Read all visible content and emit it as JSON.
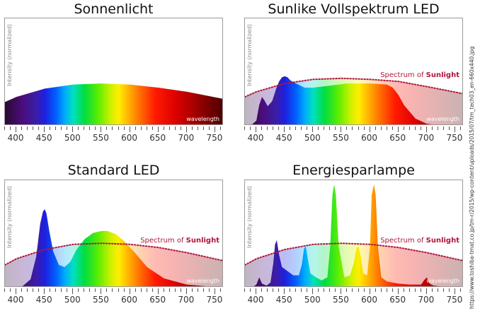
{
  "source_text": "https://www.toshiba-tmat.co.jp/tm-r/2015/wp-content/uploads/2015/07/tm_tech03_en-660x440.jpg",
  "chart_data": [
    {
      "type": "area",
      "title": "Sonnenlicht",
      "ylabel": "Intensity (normalized)",
      "wavelength_label": "wavelength",
      "xlim": [
        380,
        765
      ],
      "ylim": [
        0,
        1
      ],
      "x_ticks": [
        400,
        450,
        500,
        550,
        600,
        650,
        700,
        750
      ],
      "sun_label": null,
      "series": [
        {
          "x": [
            380,
            400,
            450,
            500,
            550,
            600,
            650,
            700,
            765
          ],
          "y": [
            0.23,
            0.28,
            0.36,
            0.4,
            0.41,
            0.4,
            0.37,
            0.33,
            0.26
          ]
        }
      ]
    },
    {
      "type": "area",
      "title": "Sunlike Vollspektrum LED",
      "ylabel": "Intensity (normalized)",
      "wavelength_label": "wavelength",
      "xlim": [
        380,
        765
      ],
      "ylim": [
        0,
        1
      ],
      "x_ticks": [
        400,
        450,
        500,
        550,
        600,
        650,
        700,
        750
      ],
      "sun_label": {
        "prefix": "Spectrum of ",
        "bold": "Sunlight"
      },
      "series": [
        {
          "x": [
            380,
            392,
            400,
            405,
            410,
            415,
            420,
            428,
            435,
            440,
            445,
            450,
            455,
            460,
            470,
            485,
            500,
            530,
            560,
            600,
            630,
            640,
            650,
            660,
            680,
            700,
            730,
            765
          ],
          "y": [
            0.0,
            0.01,
            0.05,
            0.2,
            0.28,
            0.24,
            0.19,
            0.24,
            0.36,
            0.43,
            0.47,
            0.48,
            0.47,
            0.44,
            0.41,
            0.37,
            0.37,
            0.39,
            0.41,
            0.41,
            0.4,
            0.37,
            0.3,
            0.2,
            0.07,
            0.02,
            0.0,
            0.0
          ]
        }
      ],
      "sunlight": {
        "x": [
          380,
          400,
          450,
          500,
          550,
          600,
          650,
          700,
          765
        ],
        "y": [
          0.28,
          0.33,
          0.41,
          0.45,
          0.46,
          0.45,
          0.43,
          0.38,
          0.31
        ]
      }
    },
    {
      "type": "area",
      "title": "Standard LED",
      "ylabel": "Intensity (normalized)",
      "wavelength_label": "wavelength",
      "xlim": [
        380,
        765
      ],
      "ylim": [
        0,
        1
      ],
      "x_ticks": [
        400,
        450,
        500,
        550,
        600,
        650,
        700,
        750
      ],
      "sun_label": {
        "prefix": "Spectrum of ",
        "bold": "Sunlight"
      },
      "series": [
        {
          "x": [
            380,
            410,
            425,
            435,
            442,
            447,
            450,
            453,
            458,
            465,
            475,
            485,
            495,
            505,
            520,
            535,
            550,
            560,
            575,
            590,
            610,
            630,
            660,
            700,
            740,
            765
          ],
          "y": [
            0.0,
            0.01,
            0.08,
            0.3,
            0.62,
            0.74,
            0.76,
            0.72,
            0.55,
            0.35,
            0.22,
            0.2,
            0.25,
            0.36,
            0.47,
            0.53,
            0.55,
            0.55,
            0.52,
            0.45,
            0.33,
            0.2,
            0.09,
            0.03,
            0.01,
            0.0
          ]
        }
      ],
      "sunlight": {
        "x": [
          380,
          400,
          450,
          500,
          550,
          600,
          650,
          700,
          765
        ],
        "y": [
          0.22,
          0.28,
          0.37,
          0.42,
          0.43,
          0.42,
          0.39,
          0.34,
          0.26
        ]
      }
    },
    {
      "type": "area",
      "title": "Energiesparlampe",
      "ylabel": "Intensity (normalized)",
      "wavelength_label": "wavelength",
      "xlim": [
        380,
        765
      ],
      "ylim": [
        0,
        1
      ],
      "x_ticks": [
        400,
        450,
        500,
        550,
        600,
        650,
        700,
        750
      ],
      "sun_label": {
        "prefix": "Spectrum of ",
        "bold": "Sunlight"
      },
      "series": [
        {
          "x": [
            380,
            395,
            400,
            405,
            410,
            418,
            425,
            430,
            433,
            436,
            440,
            445,
            455,
            465,
            475,
            480,
            484,
            487,
            490,
            495,
            505,
            515,
            525,
            530,
            534,
            537,
            540,
            545,
            555,
            565,
            572,
            576,
            580,
            584,
            588,
            595,
            600,
            603,
            607,
            610,
            614,
            620,
            630,
            650,
            670,
            690,
            695,
            700,
            705,
            712,
            730,
            765
          ],
          "y": [
            0.0,
            0.01,
            0.03,
            0.1,
            0.04,
            0.02,
            0.05,
            0.24,
            0.42,
            0.46,
            0.32,
            0.2,
            0.16,
            0.12,
            0.12,
            0.22,
            0.38,
            0.4,
            0.3,
            0.14,
            0.1,
            0.07,
            0.1,
            0.4,
            0.9,
            1.0,
            0.9,
            0.4,
            0.1,
            0.12,
            0.25,
            0.38,
            0.4,
            0.3,
            0.14,
            0.12,
            0.4,
            0.9,
            1.0,
            0.9,
            0.4,
            0.1,
            0.06,
            0.04,
            0.03,
            0.03,
            0.07,
            0.1,
            0.04,
            0.02,
            0.01,
            0.0
          ]
        }
      ],
      "sunlight": {
        "x": [
          380,
          400,
          450,
          500,
          550,
          600,
          650,
          700,
          765
        ],
        "y": [
          0.22,
          0.28,
          0.37,
          0.42,
          0.43,
          0.42,
          0.39,
          0.34,
          0.26
        ]
      }
    }
  ]
}
